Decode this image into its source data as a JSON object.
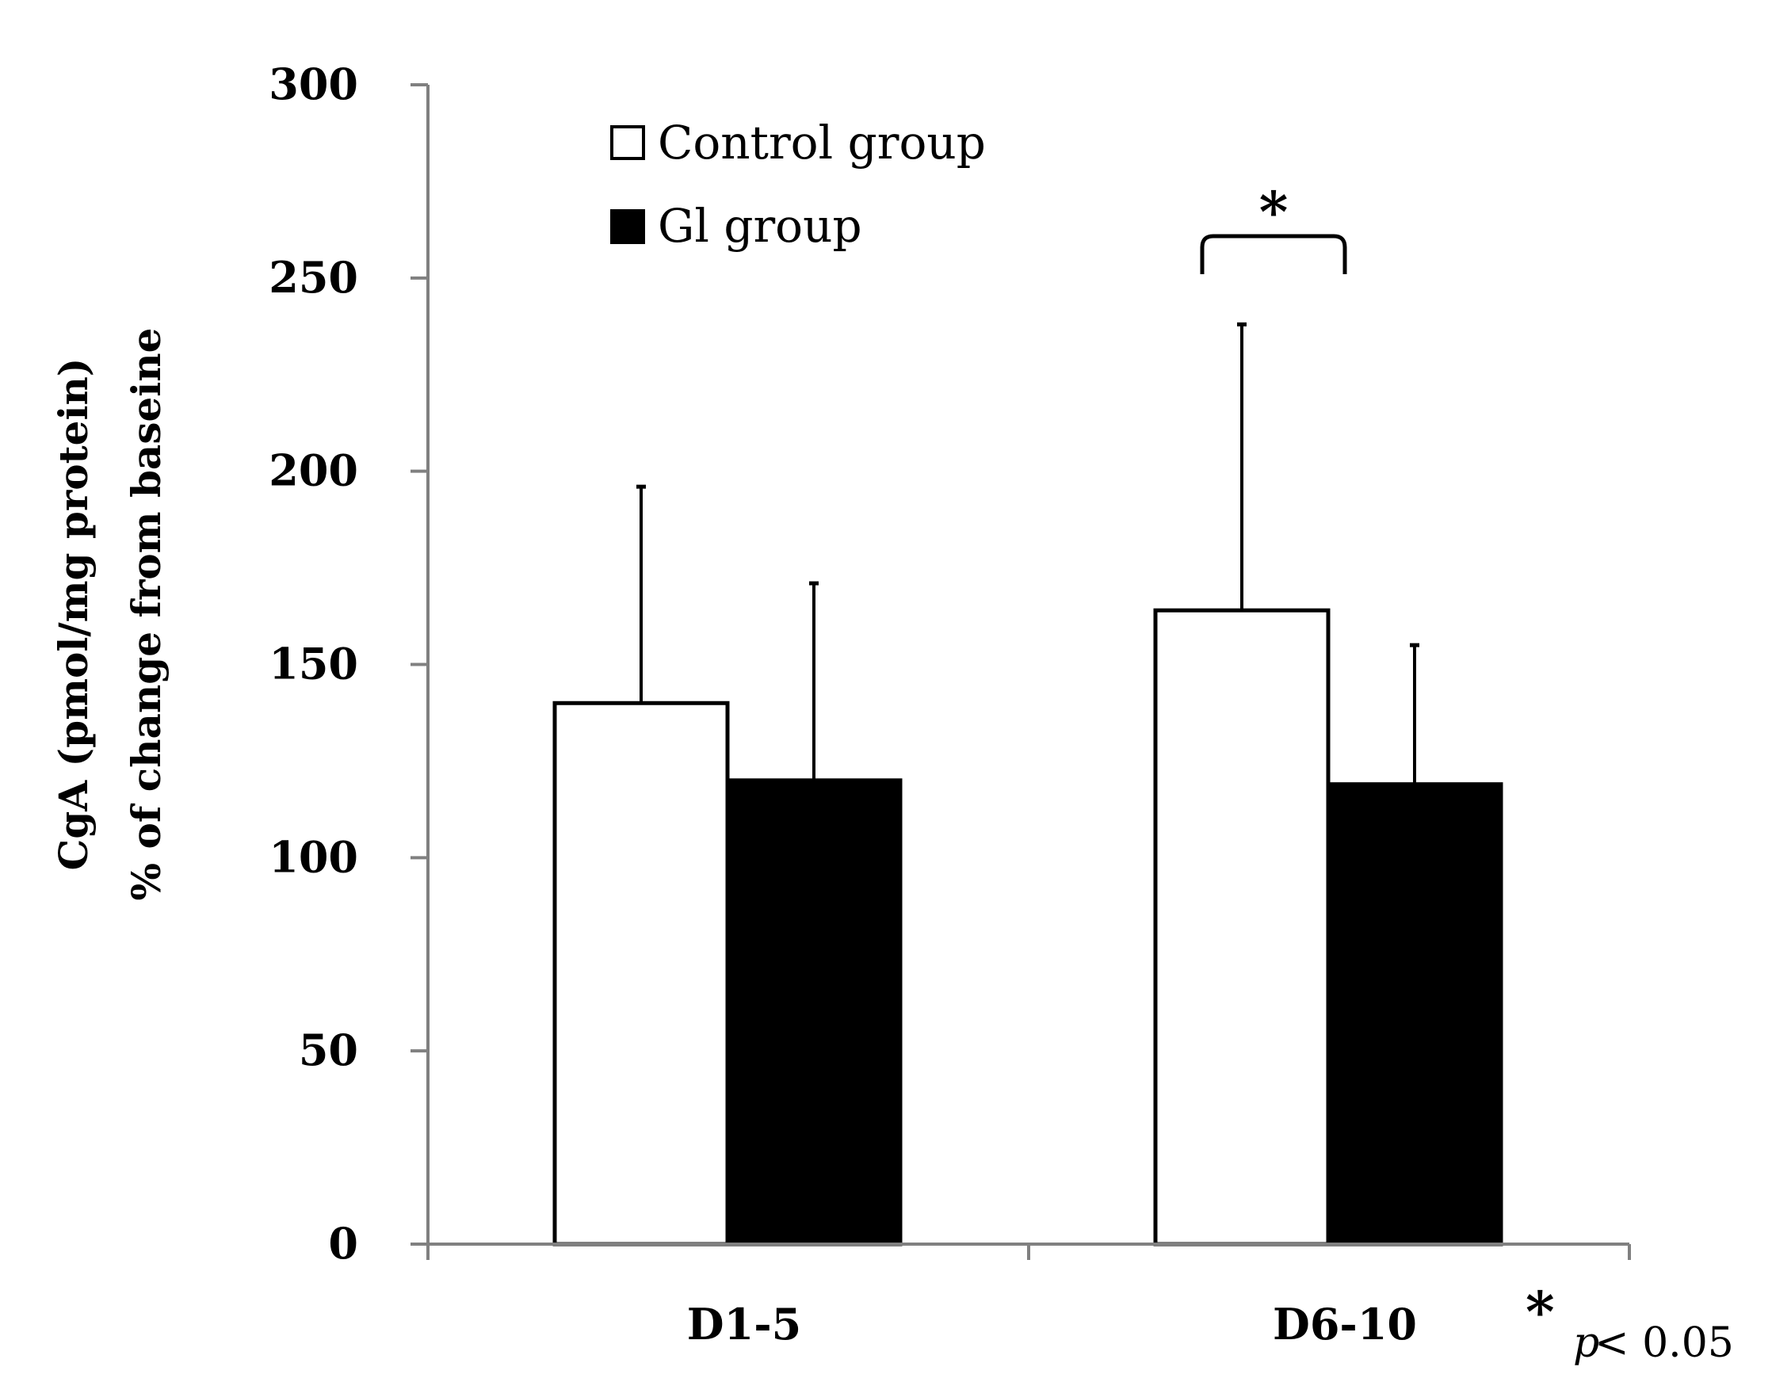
{
  "chart_data": {
    "type": "bar",
    "title": "",
    "categories": [
      "D1-5",
      "D6-10"
    ],
    "series": [
      {
        "name": "Control group",
        "values": [
          140,
          164
        ],
        "errors": [
          56,
          74
        ],
        "fill": "#ffffff"
      },
      {
        "name": "Gl group",
        "values": [
          120,
          119
        ],
        "errors": [
          51,
          36
        ],
        "fill": "#000000"
      }
    ],
    "ylabel_line1": "CgA (pmol/mg protein)",
    "ylabel_line2": "% of change from baseine",
    "xlabel": "",
    "ylim": [
      0,
      300
    ],
    "yticks": [
      0,
      50,
      100,
      150,
      200,
      250,
      300
    ],
    "grid": false,
    "legend_position": "top-left",
    "significance": {
      "category": "D6-10",
      "marker": "*"
    },
    "footnote": {
      "marker": "*",
      "p": "p",
      "rest": " < 0.05"
    }
  },
  "colors": {
    "axis": "#808080",
    "bar_outline": "#000000",
    "text": "#000000"
  }
}
